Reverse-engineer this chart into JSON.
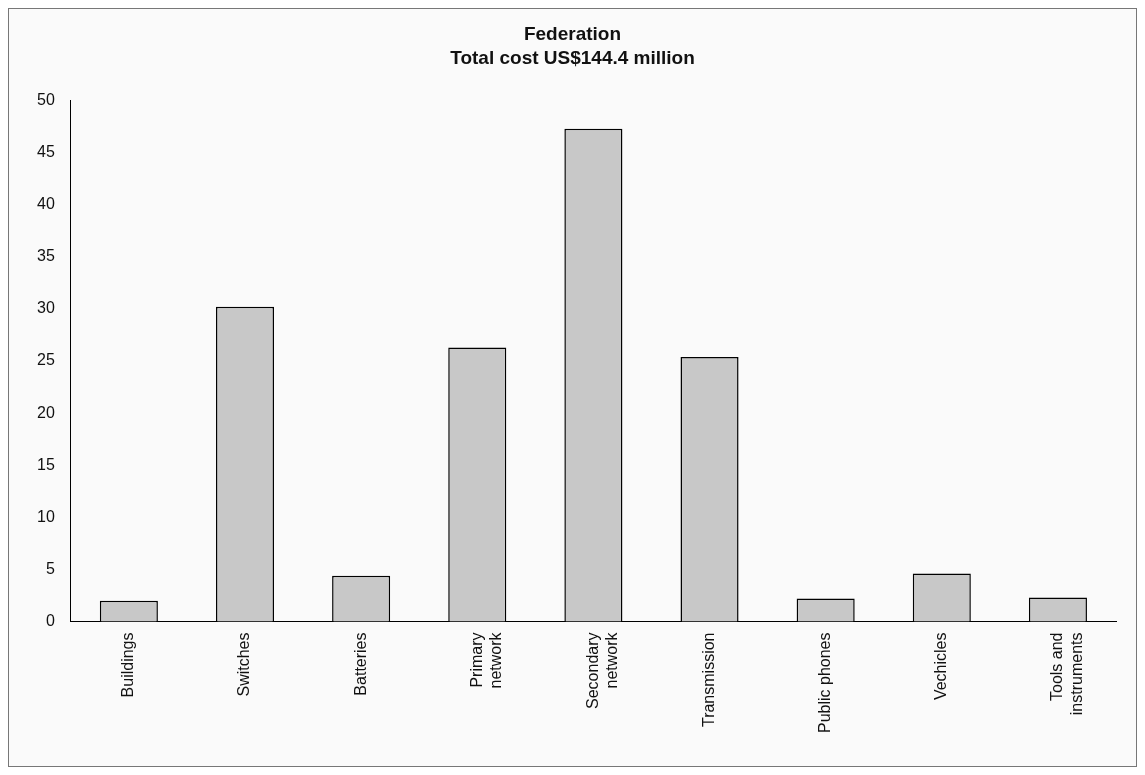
{
  "chart_data": {
    "type": "bar",
    "title": "Federation",
    "subtitle": "Total cost US$144.4 million",
    "categories": [
      "Buildings",
      "Switches",
      "Batteries",
      "Primary\nnetwork",
      "Secondary\nnetwork",
      "Transmission",
      "Public phones",
      "Vechicles",
      "Tools and\ninstruments"
    ],
    "values": [
      2,
      30.2,
      4.4,
      26.3,
      47.3,
      25.4,
      2.2,
      4.6,
      2.3
    ],
    "color": "#c8c8c8",
    "ylim": [
      0,
      50
    ],
    "yticks": [
      0,
      5,
      10,
      15,
      20,
      25,
      30,
      35,
      40,
      45,
      50
    ],
    "grid": false,
    "legend": false
  }
}
